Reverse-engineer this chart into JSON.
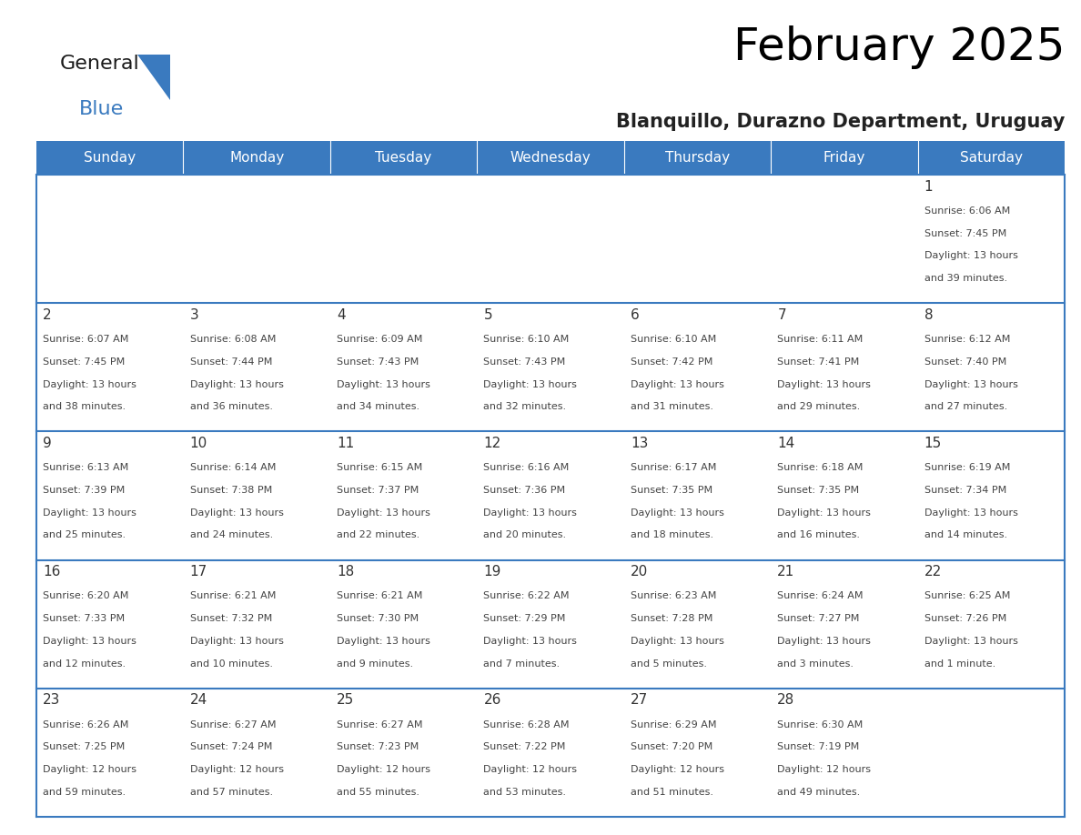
{
  "title": "February 2025",
  "subtitle": "Blanquillo, Durazno Department, Uruguay",
  "header_color": "#3a7abf",
  "header_text_color": "#ffffff",
  "cell_bg_color": "#ffffff",
  "alt_cell_bg_color": "#f5f5f5",
  "border_color": "#3a7abf",
  "day_headers": [
    "Sunday",
    "Monday",
    "Tuesday",
    "Wednesday",
    "Thursday",
    "Friday",
    "Saturday"
  ],
  "days": [
    {
      "day": 1,
      "col": 6,
      "row": 0,
      "sunrise": "6:06 AM",
      "sunset": "7:45 PM",
      "daylight": "13 hours and 39 minutes."
    },
    {
      "day": 2,
      "col": 0,
      "row": 1,
      "sunrise": "6:07 AM",
      "sunset": "7:45 PM",
      "daylight": "13 hours and 38 minutes."
    },
    {
      "day": 3,
      "col": 1,
      "row": 1,
      "sunrise": "6:08 AM",
      "sunset": "7:44 PM",
      "daylight": "13 hours and 36 minutes."
    },
    {
      "day": 4,
      "col": 2,
      "row": 1,
      "sunrise": "6:09 AM",
      "sunset": "7:43 PM",
      "daylight": "13 hours and 34 minutes."
    },
    {
      "day": 5,
      "col": 3,
      "row": 1,
      "sunrise": "6:10 AM",
      "sunset": "7:43 PM",
      "daylight": "13 hours and 32 minutes."
    },
    {
      "day": 6,
      "col": 4,
      "row": 1,
      "sunrise": "6:10 AM",
      "sunset": "7:42 PM",
      "daylight": "13 hours and 31 minutes."
    },
    {
      "day": 7,
      "col": 5,
      "row": 1,
      "sunrise": "6:11 AM",
      "sunset": "7:41 PM",
      "daylight": "13 hours and 29 minutes."
    },
    {
      "day": 8,
      "col": 6,
      "row": 1,
      "sunrise": "6:12 AM",
      "sunset": "7:40 PM",
      "daylight": "13 hours and 27 minutes."
    },
    {
      "day": 9,
      "col": 0,
      "row": 2,
      "sunrise": "6:13 AM",
      "sunset": "7:39 PM",
      "daylight": "13 hours and 25 minutes."
    },
    {
      "day": 10,
      "col": 1,
      "row": 2,
      "sunrise": "6:14 AM",
      "sunset": "7:38 PM",
      "daylight": "13 hours and 24 minutes."
    },
    {
      "day": 11,
      "col": 2,
      "row": 2,
      "sunrise": "6:15 AM",
      "sunset": "7:37 PM",
      "daylight": "13 hours and 22 minutes."
    },
    {
      "day": 12,
      "col": 3,
      "row": 2,
      "sunrise": "6:16 AM",
      "sunset": "7:36 PM",
      "daylight": "13 hours and 20 minutes."
    },
    {
      "day": 13,
      "col": 4,
      "row": 2,
      "sunrise": "6:17 AM",
      "sunset": "7:35 PM",
      "daylight": "13 hours and 18 minutes."
    },
    {
      "day": 14,
      "col": 5,
      "row": 2,
      "sunrise": "6:18 AM",
      "sunset": "7:35 PM",
      "daylight": "13 hours and 16 minutes."
    },
    {
      "day": 15,
      "col": 6,
      "row": 2,
      "sunrise": "6:19 AM",
      "sunset": "7:34 PM",
      "daylight": "13 hours and 14 minutes."
    },
    {
      "day": 16,
      "col": 0,
      "row": 3,
      "sunrise": "6:20 AM",
      "sunset": "7:33 PM",
      "daylight": "13 hours and 12 minutes."
    },
    {
      "day": 17,
      "col": 1,
      "row": 3,
      "sunrise": "6:21 AM",
      "sunset": "7:32 PM",
      "daylight": "13 hours and 10 minutes."
    },
    {
      "day": 18,
      "col": 2,
      "row": 3,
      "sunrise": "6:21 AM",
      "sunset": "7:30 PM",
      "daylight": "13 hours and 9 minutes."
    },
    {
      "day": 19,
      "col": 3,
      "row": 3,
      "sunrise": "6:22 AM",
      "sunset": "7:29 PM",
      "daylight": "13 hours and 7 minutes."
    },
    {
      "day": 20,
      "col": 4,
      "row": 3,
      "sunrise": "6:23 AM",
      "sunset": "7:28 PM",
      "daylight": "13 hours and 5 minutes."
    },
    {
      "day": 21,
      "col": 5,
      "row": 3,
      "sunrise": "6:24 AM",
      "sunset": "7:27 PM",
      "daylight": "13 hours and 3 minutes."
    },
    {
      "day": 22,
      "col": 6,
      "row": 3,
      "sunrise": "6:25 AM",
      "sunset": "7:26 PM",
      "daylight": "13 hours and 1 minute."
    },
    {
      "day": 23,
      "col": 0,
      "row": 4,
      "sunrise": "6:26 AM",
      "sunset": "7:25 PM",
      "daylight": "12 hours and 59 minutes."
    },
    {
      "day": 24,
      "col": 1,
      "row": 4,
      "sunrise": "6:27 AM",
      "sunset": "7:24 PM",
      "daylight": "12 hours and 57 minutes."
    },
    {
      "day": 25,
      "col": 2,
      "row": 4,
      "sunrise": "6:27 AM",
      "sunset": "7:23 PM",
      "daylight": "12 hours and 55 minutes."
    },
    {
      "day": 26,
      "col": 3,
      "row": 4,
      "sunrise": "6:28 AM",
      "sunset": "7:22 PM",
      "daylight": "12 hours and 53 minutes."
    },
    {
      "day": 27,
      "col": 4,
      "row": 4,
      "sunrise": "6:29 AM",
      "sunset": "7:20 PM",
      "daylight": "12 hours and 51 minutes."
    },
    {
      "day": 28,
      "col": 5,
      "row": 4,
      "sunrise": "6:30 AM",
      "sunset": "7:19 PM",
      "daylight": "12 hours and 49 minutes."
    }
  ],
  "num_rows": 5,
  "num_cols": 7,
  "logo_text_general": "General",
  "logo_text_blue": "Blue",
  "logo_triangle_color": "#3a7abf",
  "title_fontsize": 36,
  "subtitle_fontsize": 15,
  "header_fontsize": 11,
  "day_num_fontsize": 11,
  "cell_text_fontsize": 8
}
